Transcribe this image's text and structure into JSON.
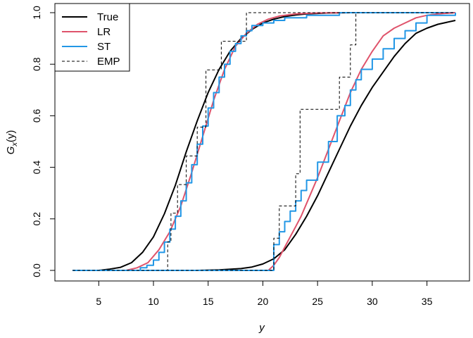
{
  "chart_data": {
    "type": "line",
    "xlabel": "y",
    "ylabel_main": "G",
    "ylabel_sub": "x",
    "ylabel_arg": "(y)",
    "xlim": [
      2.5,
      38.0
    ],
    "ylim": [
      0.0,
      1.0
    ],
    "x_ticks": [
      5,
      10,
      15,
      20,
      25,
      30,
      35
    ],
    "y_ticks": [
      0.0,
      0.2,
      0.4,
      0.6,
      0.8,
      1.0
    ],
    "y_tick_labels": [
      "0.0",
      "0.2",
      "0.4",
      "0.6",
      "0.8",
      "1.0"
    ],
    "grid": false,
    "legend_position": "top-left",
    "legend": [
      {
        "label": "True",
        "color": "#000000",
        "dash": "solid",
        "width": 2
      },
      {
        "label": "LR",
        "color": "#DF536B",
        "dash": "solid",
        "width": 2
      },
      {
        "label": "ST",
        "color": "#2297E6",
        "dash": "solid",
        "width": 2
      },
      {
        "label": "EMP",
        "color": "#000000",
        "dash": "dashed",
        "width": 1
      }
    ],
    "series": [
      {
        "name": "True",
        "group": "left",
        "color": "#000000",
        "dash": "solid",
        "width": 2,
        "step": false,
        "x": [
          2.6,
          5,
          6,
          7,
          8,
          9,
          10,
          11,
          12,
          13,
          14,
          15,
          16,
          17,
          18,
          19,
          20,
          21,
          22,
          23,
          24,
          25,
          26,
          28,
          30,
          37.6
        ],
        "y": [
          0.0,
          0.0,
          0.005,
          0.012,
          0.03,
          0.07,
          0.13,
          0.22,
          0.33,
          0.46,
          0.58,
          0.69,
          0.78,
          0.85,
          0.9,
          0.935,
          0.96,
          0.975,
          0.985,
          0.991,
          0.995,
          0.997,
          0.999,
          1.0,
          1.0,
          1.0
        ]
      },
      {
        "name": "LR",
        "group": "left",
        "color": "#DF536B",
        "dash": "solid",
        "width": 2,
        "step": false,
        "x": [
          2.6,
          7.5,
          8.5,
          9.5,
          10.5,
          11.5,
          12.5,
          13.5,
          14.5,
          15.5,
          16.5,
          17.5,
          18.5,
          19.5,
          20.5,
          21.5,
          23,
          25,
          28,
          37.6
        ],
        "y": [
          0.0,
          0.0,
          0.01,
          0.03,
          0.08,
          0.15,
          0.25,
          0.38,
          0.52,
          0.66,
          0.78,
          0.87,
          0.92,
          0.955,
          0.975,
          0.987,
          0.995,
          0.999,
          1.0,
          1.0
        ]
      },
      {
        "name": "ST",
        "group": "left",
        "color": "#2297E6",
        "dash": "solid",
        "width": 2,
        "step": true,
        "x": [
          2.6,
          8.2,
          8.8,
          9.4,
          10.0,
          10.5,
          11.0,
          11.5,
          12.0,
          12.5,
          13.0,
          13.5,
          14.0,
          14.5,
          15.0,
          15.5,
          16.0,
          16.5,
          17.0,
          17.5,
          18.0,
          18.5,
          19.0,
          20.0,
          21.0,
          22.0,
          24.0,
          27.0,
          37.6
        ],
        "y": [
          0.0,
          0.0,
          0.01,
          0.02,
          0.04,
          0.07,
          0.11,
          0.16,
          0.21,
          0.27,
          0.34,
          0.41,
          0.49,
          0.56,
          0.63,
          0.69,
          0.75,
          0.8,
          0.85,
          0.88,
          0.91,
          0.93,
          0.95,
          0.96,
          0.97,
          0.98,
          0.99,
          1.0,
          1.0
        ]
      },
      {
        "name": "EMP",
        "group": "left",
        "color": "#000000",
        "dash": "dashed",
        "width": 1,
        "step": true,
        "x": [
          2.6,
          11.1,
          11.3,
          11.6,
          12.2,
          13.0,
          14.0,
          14.8,
          16.2,
          17.6,
          18.5,
          37.6
        ],
        "y": [
          0.0,
          0.0,
          0.111,
          0.222,
          0.333,
          0.444,
          0.556,
          0.778,
          0.889,
          0.889,
          1.0,
          1.0
        ]
      },
      {
        "name": "True",
        "group": "right",
        "color": "#000000",
        "dash": "solid",
        "width": 2,
        "step": false,
        "x": [
          2.6,
          14,
          16,
          18,
          19,
          20,
          21,
          22,
          23,
          24,
          25,
          26,
          27,
          28,
          29,
          30,
          31,
          32,
          33,
          34,
          35,
          36,
          37.6
        ],
        "y": [
          0.0,
          0.0,
          0.002,
          0.007,
          0.013,
          0.025,
          0.045,
          0.08,
          0.14,
          0.21,
          0.29,
          0.38,
          0.47,
          0.56,
          0.64,
          0.71,
          0.77,
          0.83,
          0.88,
          0.92,
          0.94,
          0.955,
          0.97
        ]
      },
      {
        "name": "LR",
        "group": "right",
        "color": "#DF536B",
        "dash": "solid",
        "width": 2,
        "step": false,
        "x": [
          2.6,
          20.5,
          21.0,
          21.5,
          22.0,
          22.5,
          23.0,
          23.5,
          24.0,
          25.0,
          26.0,
          27.0,
          28.0,
          29.0,
          30.0,
          31.0,
          32.0,
          33.0,
          34.0,
          35.0,
          36.0,
          37.6
        ],
        "y": [
          0.0,
          0.0,
          0.02,
          0.05,
          0.09,
          0.13,
          0.17,
          0.21,
          0.26,
          0.36,
          0.47,
          0.58,
          0.69,
          0.78,
          0.85,
          0.91,
          0.94,
          0.96,
          0.98,
          0.99,
          0.995,
          1.0
        ]
      },
      {
        "name": "ST",
        "group": "right",
        "color": "#2297E6",
        "dash": "solid",
        "width": 2,
        "step": true,
        "x": [
          2.6,
          20.4,
          21.0,
          21.5,
          22.0,
          22.5,
          23.0,
          23.5,
          24.0,
          25.0,
          26.0,
          26.8,
          27.5,
          28.0,
          28.5,
          29.0,
          30.0,
          31.0,
          32.0,
          33.0,
          34.0,
          35.0,
          37.6
        ],
        "y": [
          0.0,
          0.0,
          0.1,
          0.15,
          0.19,
          0.23,
          0.27,
          0.31,
          0.35,
          0.42,
          0.5,
          0.6,
          0.64,
          0.7,
          0.74,
          0.78,
          0.82,
          0.86,
          0.9,
          0.93,
          0.96,
          0.99,
          1.0
        ]
      },
      {
        "name": "EMP",
        "group": "right",
        "color": "#000000",
        "dash": "dashed",
        "width": 1,
        "step": true,
        "x": [
          2.6,
          20.4,
          21.0,
          21.5,
          22.5,
          23.0,
          23.4,
          25.5,
          27.0,
          27.5,
          28.0,
          28.3,
          28.5,
          37.6
        ],
        "y": [
          0.0,
          0.0,
          0.125,
          0.25,
          0.25,
          0.375,
          0.625,
          0.625,
          0.75,
          0.75,
          0.875,
          0.875,
          1.0,
          1.0
        ]
      }
    ]
  }
}
